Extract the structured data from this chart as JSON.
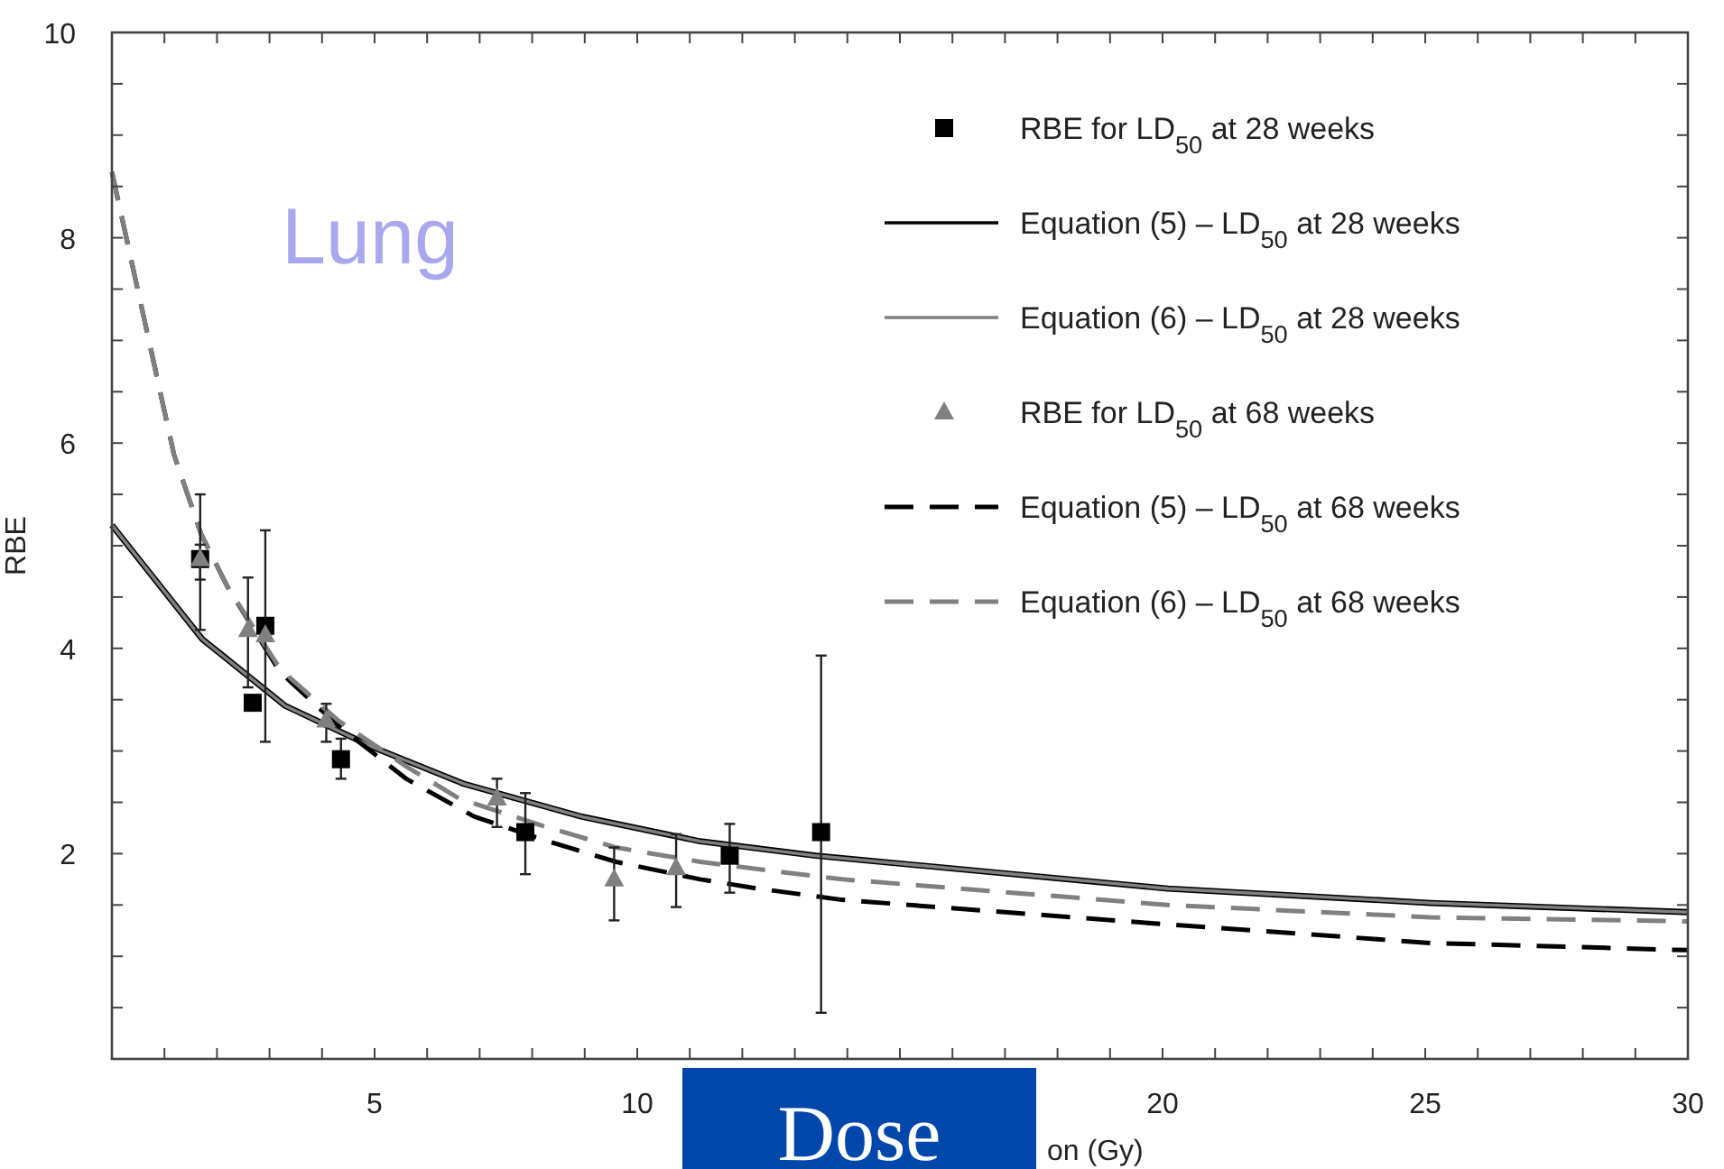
{
  "chart_data": {
    "type": "line",
    "xlabel": "on (Gy)",
    "ylabel": "RBE",
    "annotations": [
      "Lung",
      "Dose"
    ],
    "xlim": [
      0,
      30
    ],
    "ylim": [
      0,
      10
    ],
    "xticks": [
      {
        "value": 1,
        "label": null
      },
      {
        "value": 2,
        "label": null
      },
      {
        "value": 3,
        "label": null
      },
      {
        "value": 4,
        "label": null
      },
      5,
      {
        "value": 6,
        "label": null
      },
      {
        "value": 7,
        "label": null
      },
      {
        "value": 8,
        "label": null
      },
      {
        "value": 9,
        "label": null
      },
      10,
      {
        "value": 11,
        "label": null
      },
      {
        "value": 12,
        "label": null
      },
      {
        "value": 13,
        "label": null
      },
      {
        "value": 14,
        "label": null
      },
      {
        "value": 15,
        "label": null
      },
      {
        "value": 16,
        "label": null
      },
      {
        "value": 17,
        "label": null
      },
      {
        "value": 18,
        "label": null
      },
      {
        "value": 19,
        "label": null
      },
      20,
      {
        "value": 21,
        "label": null
      },
      {
        "value": 22,
        "label": null
      },
      {
        "value": 23,
        "label": null
      },
      {
        "value": 24,
        "label": null
      },
      25,
      {
        "value": 26,
        "label": null
      },
      {
        "value": 27,
        "label": null
      },
      {
        "value": 28,
        "label": null
      },
      {
        "value": 29,
        "label": null
      },
      30
    ],
    "yticks": [
      {
        "value": 0.5,
        "label": null
      },
      {
        "value": 1,
        "label": null
      },
      {
        "value": 1.5,
        "label": null
      },
      2,
      {
        "value": 2.5,
        "label": null
      },
      {
        "value": 3,
        "label": null
      },
      {
        "value": 3.5,
        "label": null
      },
      4,
      {
        "value": 4.5,
        "label": null
      },
      {
        "value": 5,
        "label": null
      },
      {
        "value": 5.5,
        "label": null
      },
      6,
      {
        "value": 6.5,
        "label": null
      },
      {
        "value": 7,
        "label": null
      },
      {
        "value": 7.5,
        "label": null
      },
      8,
      {
        "value": 8.5,
        "label": null
      },
      {
        "value": 9,
        "label": null
      },
      {
        "value": 9.5,
        "label": null
      },
      10
    ],
    "legend": "top right",
    "series": [
      {
        "name": "RBE for LD$_{50}$ at 28 weeks",
        "type": "scatter",
        "marker": "square",
        "color": "#000000",
        "x": [
          1.68,
          2.68,
          2.92,
          4.36,
          7.87,
          11.76,
          13.5
        ],
        "values": [
          4.87,
          3.47,
          4.22,
          2.92,
          2.21,
          1.98,
          2.21
        ],
        "errors": [
          [
            4.18,
            5.5
          ],
          null,
          [
            3.09,
            5.15
          ],
          [
            2.73,
            3.12
          ],
          [
            1.8,
            2.59
          ],
          [
            1.62,
            2.29
          ],
          [
            0.45,
            3.93
          ]
        ]
      },
      {
        "name": "Equation (5) – LD$_{50}$ at 28 weeks",
        "line_style": "solid",
        "color": "#000000",
        "x": [
          0,
          1.72,
          3.3,
          5,
          6.7,
          8.95,
          11.2,
          13.4,
          20.1,
          25.1,
          30
        ],
        "values": [
          5.2,
          4.09,
          3.44,
          3.03,
          2.68,
          2.36,
          2.12,
          1.98,
          1.66,
          1.52,
          1.43
        ]
      },
      {
        "name": "Equation (6) – LD$_{50}$ at 28 weeks",
        "line_style": "solid",
        "color": "#808080",
        "x": [
          0,
          1.72,
          3.3,
          5,
          6.7,
          8.95,
          11.2,
          13.4,
          20.1,
          25.1,
          30
        ],
        "values": [
          5.2,
          4.09,
          3.44,
          3.03,
          2.68,
          2.36,
          2.12,
          1.98,
          1.66,
          1.52,
          1.43
        ]
      },
      {
        "name": "RBE for LD$_{50}$ at 68 weeks",
        "type": "scatter",
        "marker": "triangle",
        "color": "#808080",
        "x": [
          1.68,
          2.59,
          2.92,
          4.08,
          7.33,
          9.56,
          10.74
        ],
        "values": [
          4.87,
          4.18,
          4.13,
          3.3,
          2.54,
          1.75,
          1.86
        ],
        "errors": [
          [
            4.67,
            5.01
          ],
          [
            3.62,
            4.69
          ],
          null,
          [
            3.09,
            3.46
          ],
          [
            2.26,
            2.73
          ],
          [
            1.35,
            2.06
          ],
          [
            1.48,
            2.19
          ]
        ]
      },
      {
        "name": "Equation (5) – LD$_{50}$ at 68 weeks",
        "line_style": "dashed",
        "color": "#000000",
        "x": [
          0,
          1.18,
          1.7,
          2.2,
          3.2,
          4.3,
          5.6,
          6.9,
          8.3,
          9.6,
          11.2,
          12.3,
          13.9,
          20.1,
          25.1,
          30
        ],
        "values": [
          8.64,
          5.89,
          5.11,
          4.6,
          3.77,
          3.25,
          2.73,
          2.36,
          2.12,
          1.92,
          1.75,
          1.66,
          1.55,
          1.31,
          1.13,
          1.06
        ]
      },
      {
        "name": "Equation (6) – LD$_{50}$ at 68 weeks",
        "line_style": "dashed",
        "color": "#808080",
        "x": [
          0,
          1.18,
          1.7,
          2.2,
          3.2,
          4.3,
          5.6,
          6.6,
          8.2,
          9.6,
          11.2,
          12.6,
          13.9,
          20.1,
          25.1,
          30
        ],
        "values": [
          8.64,
          5.89,
          5.11,
          4.6,
          3.8,
          3.3,
          2.85,
          2.54,
          2.27,
          2.06,
          1.92,
          1.83,
          1.75,
          1.5,
          1.38,
          1.34
        ]
      }
    ]
  }
}
